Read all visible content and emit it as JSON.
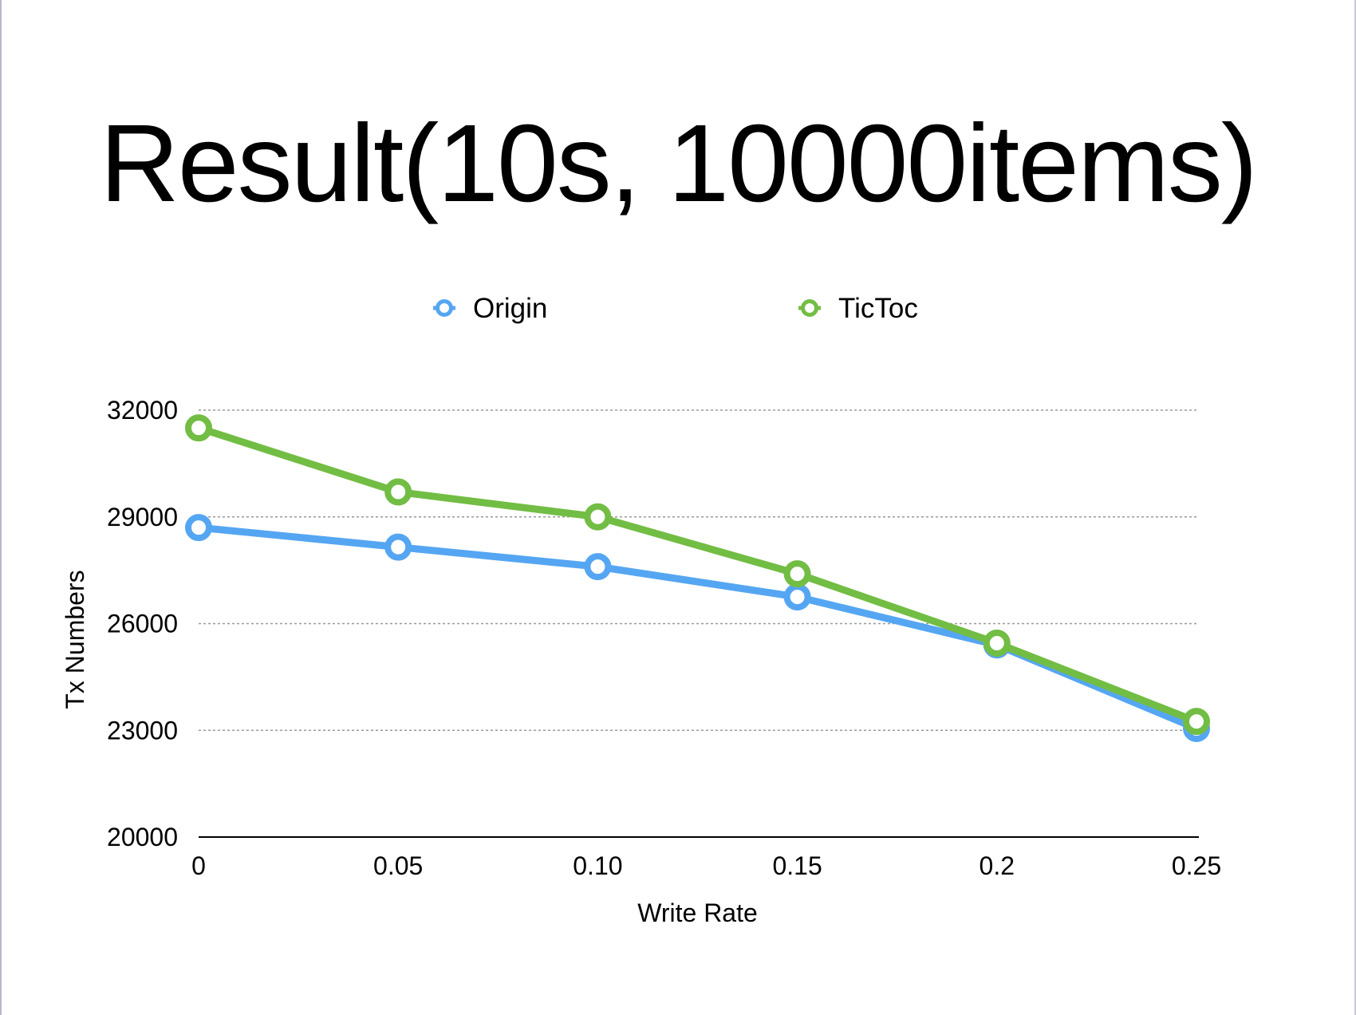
{
  "slide": {
    "title": "Result(10s, 10000items)"
  },
  "chart_data": {
    "type": "line",
    "x": [
      "0",
      "0.05",
      "0.10",
      "0.15",
      "0.2",
      "0.25"
    ],
    "y_ticks": [
      "20000",
      "23000",
      "26000",
      "29000",
      "32000"
    ],
    "xlabel": "Write Rate",
    "ylabel": "Tx Numbers",
    "ylim": [
      20000,
      32000
    ],
    "grid": true,
    "legend_position": "top",
    "series": [
      {
        "name": "Origin",
        "color": "#55a6f2",
        "values": [
          28700,
          28150,
          27600,
          26750,
          25400,
          23050
        ]
      },
      {
        "name": "TicToc",
        "color": "#72bd44",
        "values": [
          31500,
          29700,
          29000,
          27400,
          25450,
          23250
        ]
      }
    ]
  }
}
